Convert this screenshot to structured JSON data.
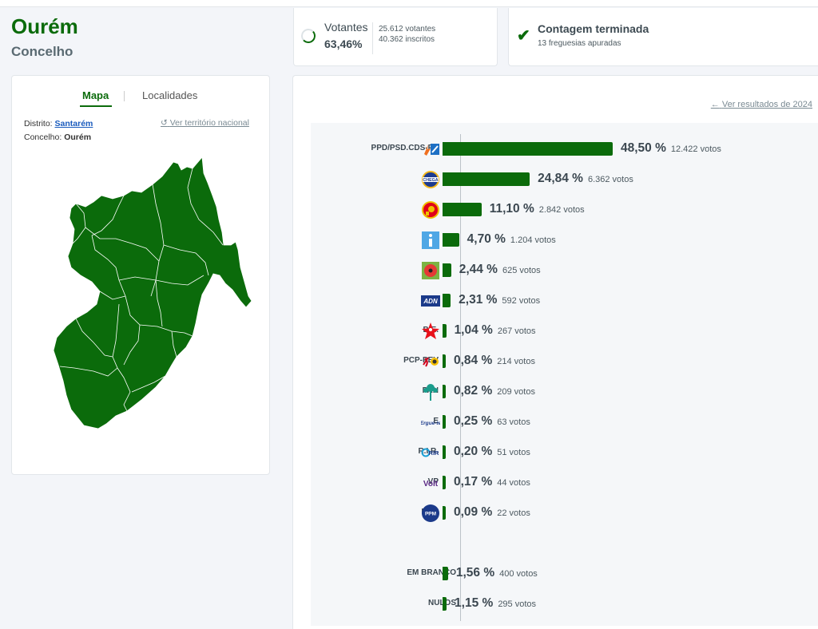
{
  "header": {
    "title": "Ourém",
    "subtitle": "Concelho"
  },
  "turnout": {
    "label": "Votantes",
    "percent": "63,46%",
    "voters": "25.612 votantes",
    "registered": "40.362 inscritos",
    "fraction": 0.6346
  },
  "count": {
    "title": "Contagem terminada",
    "detail": "13 freguesias apuradas",
    "icon": "check-icon"
  },
  "map_panel": {
    "tabs": [
      "Mapa",
      "Localidades"
    ],
    "district_label": "Distrito:",
    "district_value": "Santarém",
    "municipality_label": "Concelho:",
    "municipality_value": "Ourém",
    "national_link": "Ver território nacional"
  },
  "results": {
    "previous_link": "Ver resultados de 2024",
    "parties": [
      {
        "name": "PPD/PSD.CDS-PP",
        "percent": "48,50 %",
        "votes": "12.422 votos",
        "value": 48.5,
        "logo": "ad-logo"
      },
      {
        "name": "CH",
        "percent": "24,84 %",
        "votes": "6.362 votos",
        "value": 24.84,
        "logo": "chega-logo"
      },
      {
        "name": "PS",
        "percent": "11,10 %",
        "votes": "2.842 votos",
        "value": 11.1,
        "logo": "ps-logo"
      },
      {
        "name": "IL",
        "percent": "4,70 %",
        "votes": "1.204 votos",
        "value": 4.7,
        "logo": "il-logo"
      },
      {
        "name": "L",
        "percent": "2,44 %",
        "votes": "625 votos",
        "value": 2.44,
        "logo": "livre-logo"
      },
      {
        "name": "ADN",
        "percent": "2,31 %",
        "votes": "592 votos",
        "value": 2.31,
        "logo": "adn-logo"
      },
      {
        "name": "B.E.",
        "percent": "1,04 %",
        "votes": "267 votos",
        "value": 1.04,
        "logo": "be-logo"
      },
      {
        "name": "PCP-PEV",
        "percent": "0,84 %",
        "votes": "214 votos",
        "value": 0.84,
        "logo": "cdu-logo"
      },
      {
        "name": "PAN",
        "percent": "0,82 %",
        "votes": "209 votos",
        "value": 0.82,
        "logo": "pan-logo"
      },
      {
        "name": "E",
        "percent": "0,25 %",
        "votes": "63 votos",
        "value": 0.25,
        "logo": "ergue-te-logo"
      },
      {
        "name": "R.I.R.",
        "percent": "0,20 %",
        "votes": "51 votos",
        "value": 0.2,
        "logo": "rir-logo"
      },
      {
        "name": "VP",
        "percent": "0,17 %",
        "votes": "44 votos",
        "value": 0.17,
        "logo": "volt-logo"
      },
      {
        "name": "PPM",
        "percent": "0,09 %",
        "votes": "22 votos",
        "value": 0.09,
        "logo": "ppm-logo"
      }
    ],
    "other": [
      {
        "name": "EM BRANCO",
        "percent": "1,56 %",
        "votes": "400 votos",
        "value": 1.56
      },
      {
        "name": "NULOS",
        "percent": "1,15 %",
        "votes": "295 votos",
        "value": 1.15
      }
    ],
    "logo_text": {
      "adn": "ADN",
      "volt": "Volt",
      "rir": "RIR",
      "ergue": "Ergue-te",
      "ppm": "PPM",
      "chega": "CHEGA"
    }
  },
  "colors": {
    "accent": "#0b6b0b",
    "link": "#1a5bbd"
  }
}
